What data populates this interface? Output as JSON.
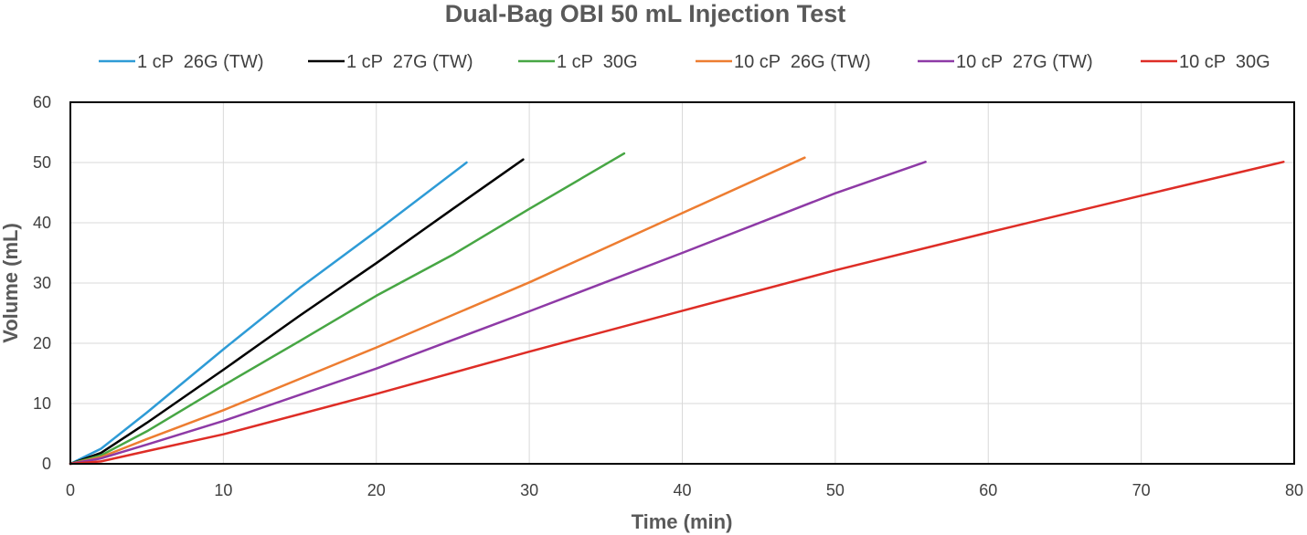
{
  "chart_data": {
    "type": "line",
    "title": "Dual-Bag OBI 50 mL Injection Test",
    "xlabel": "Time (min)",
    "ylabel": "Volume (mL)",
    "xlim": [
      0,
      80
    ],
    "ylim": [
      0,
      60
    ],
    "xticks": [
      "0",
      "10",
      "20",
      "30",
      "40",
      "50",
      "60",
      "70",
      "80"
    ],
    "yticks": [
      "0",
      "10",
      "20",
      "30",
      "40",
      "50",
      "60"
    ],
    "grid": true,
    "legend_position": "top",
    "series": [
      {
        "name": "1 cP  26G (TW)",
        "color": "#2e9bd6",
        "points": [
          [
            0,
            0
          ],
          [
            2,
            2.5
          ],
          [
            5,
            8.5
          ],
          [
            10,
            19
          ],
          [
            15,
            29.2
          ],
          [
            20,
            38.6
          ],
          [
            25.9,
            50
          ]
        ]
      },
      {
        "name": "1 cP  27G (TW)",
        "color": "#000000",
        "points": [
          [
            0,
            0
          ],
          [
            2,
            1.8
          ],
          [
            5,
            6.8
          ],
          [
            10,
            15.6
          ],
          [
            15,
            24.6
          ],
          [
            20,
            33.3
          ],
          [
            25,
            42.3
          ],
          [
            29.6,
            50.5
          ]
        ]
      },
      {
        "name": "1 cP  30G",
        "color": "#47a644",
        "points": [
          [
            0,
            0
          ],
          [
            2,
            1.4
          ],
          [
            5,
            5.4
          ],
          [
            10,
            13
          ],
          [
            15,
            20.4
          ],
          [
            20,
            27.9
          ],
          [
            25,
            34.7
          ],
          [
            30,
            42.3
          ],
          [
            36.2,
            51.5
          ]
        ]
      },
      {
        "name": "10 cP  26G (TW)",
        "color": "#ed7d31",
        "points": [
          [
            0,
            0
          ],
          [
            2,
            1.1
          ],
          [
            5,
            4.1
          ],
          [
            10,
            8.9
          ],
          [
            20,
            19.3
          ],
          [
            30,
            30.1
          ],
          [
            40,
            41.6
          ],
          [
            48,
            50.8
          ]
        ]
      },
      {
        "name": "10 cP  27G (TW)",
        "color": "#8e3aa6",
        "points": [
          [
            0,
            0
          ],
          [
            2,
            0.9
          ],
          [
            5,
            3.2
          ],
          [
            10,
            7.1
          ],
          [
            20,
            15.8
          ],
          [
            30,
            25.3
          ],
          [
            40,
            35
          ],
          [
            50,
            44.9
          ],
          [
            55.9,
            50.1
          ]
        ]
      },
      {
        "name": "10 cP  30G",
        "color": "#de2d26",
        "points": [
          [
            0,
            0
          ],
          [
            2,
            0.4
          ],
          [
            5,
            2.1
          ],
          [
            10,
            4.9
          ],
          [
            20,
            11.6
          ],
          [
            30,
            18.6
          ],
          [
            40,
            25.4
          ],
          [
            50,
            32.1
          ],
          [
            60,
            38.4
          ],
          [
            70,
            44.5
          ],
          [
            79.3,
            50.1
          ]
        ]
      }
    ]
  }
}
